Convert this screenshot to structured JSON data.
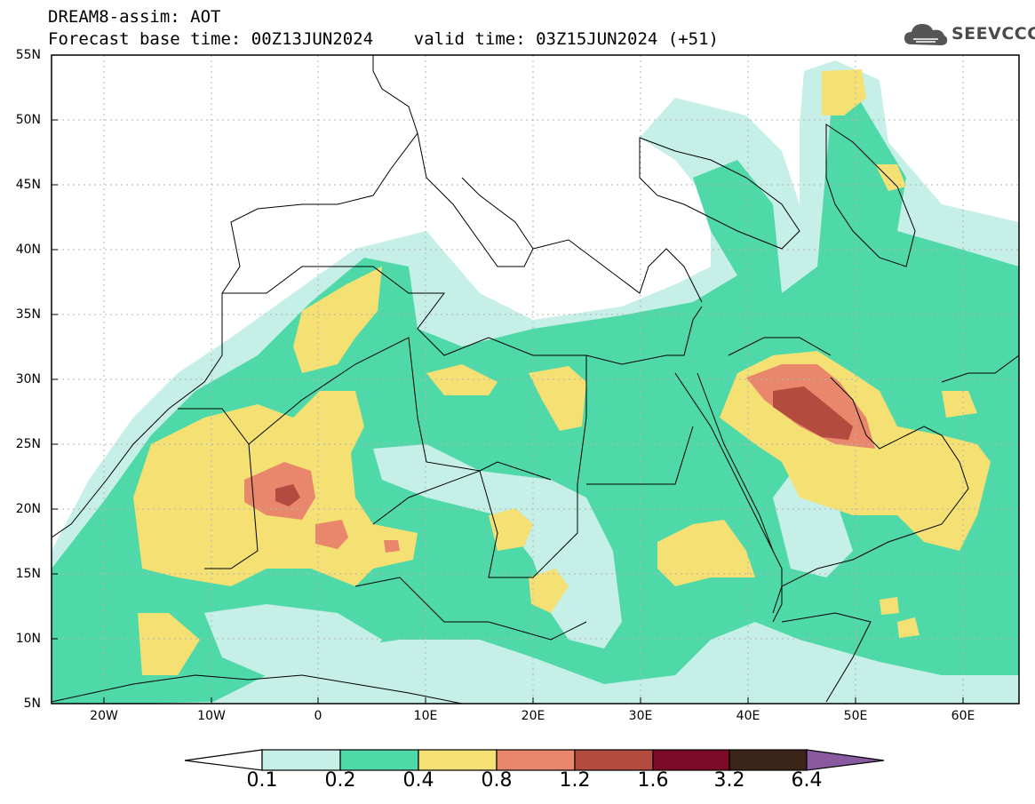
{
  "header": {
    "title_line1": "DREAM8-assim: AOT",
    "title_line2": "Forecast base time: 00Z13JUN2024    valid time: 03Z15JUN2024 (+51)",
    "logo_text": "SEEVCCC",
    "logo_icon": "cloud-icon"
  },
  "map": {
    "variable": "AOT",
    "lat_labels": [
      "55N",
      "50N",
      "45N",
      "40N",
      "35N",
      "30N",
      "25N",
      "20N",
      "15N",
      "10N",
      "5N"
    ],
    "lon_labels": [
      "20W",
      "10W",
      "0",
      "10E",
      "20E",
      "30E",
      "40E",
      "50E",
      "60E"
    ],
    "lat_range": [
      5,
      55
    ],
    "lon_range": [
      -25,
      65
    ],
    "grid": true,
    "coastline_color": "#000000",
    "grid_color": "#b4b4b4"
  },
  "colorbar": {
    "labels": [
      "0.1",
      "0.2",
      "0.4",
      "0.8",
      "1.2",
      "1.6",
      "3.2",
      "6.4"
    ],
    "colors": [
      "#ffffff",
      "#c6efe8",
      "#4fd9a8",
      "#f4e073",
      "#e8876b",
      "#b44b3f",
      "#7a0a28",
      "#3b2418",
      "#8a5aa0"
    ]
  }
}
